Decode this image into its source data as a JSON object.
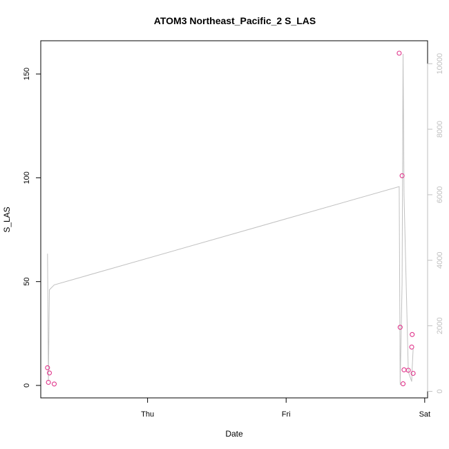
{
  "chart_data": {
    "type": "scatter",
    "title": "ATOM3 Northeast_Pacific_2 S_LAS",
    "xlabel": "Date",
    "ylabel": "S_LAS",
    "x_ticks": [
      {
        "label": "Thu",
        "value": "2021-05-13T00:00"
      },
      {
        "label": "Fri",
        "value": "2021-05-14T00:00"
      },
      {
        "label": "Sat",
        "value": "2021-05-15T00:00"
      }
    ],
    "xlim": [
      "2021-05-12T05:30",
      "2021-05-15T00:30"
    ],
    "ylim": [
      -6,
      166
    ],
    "y_ticks": [
      0,
      50,
      100,
      150
    ],
    "y2lim": [
      -200,
      10700
    ],
    "y2_ticks": [
      0,
      2000,
      4000,
      6000,
      8000,
      10000
    ],
    "grid": false,
    "legend": "none",
    "series": [
      {
        "kind": "points",
        "axis": "left",
        "color": "#e0338a",
        "points": [
          {
            "x": "2021-05-12T06:40",
            "y": 8.5
          },
          {
            "x": "2021-05-12T06:50",
            "y": 1.5
          },
          {
            "x": "2021-05-12T07:00",
            "y": 6
          },
          {
            "x": "2021-05-12T07:50",
            "y": 0.7
          },
          {
            "x": "2021-05-14T19:35",
            "y": 160
          },
          {
            "x": "2021-05-14T19:45",
            "y": 28
          },
          {
            "x": "2021-05-14T20:05",
            "y": 101
          },
          {
            "x": "2021-05-14T20:15",
            "y": 0.8
          },
          {
            "x": "2021-05-14T20:25",
            "y": 7.5
          },
          {
            "x": "2021-05-14T21:10",
            "y": 7.3
          },
          {
            "x": "2021-05-14T21:45",
            "y": 18.5
          },
          {
            "x": "2021-05-14T21:50",
            "y": 24.5
          },
          {
            "x": "2021-05-14T22:00",
            "y": 5.8
          }
        ]
      },
      {
        "kind": "line",
        "axis": "right",
        "color": "#c0c0c0",
        "points": [
          {
            "x": "2021-05-12T06:40",
            "y": 4200
          },
          {
            "x": "2021-05-12T06:50",
            "y": 300
          },
          {
            "x": "2021-05-12T07:00",
            "y": 3100
          },
          {
            "x": "2021-05-12T07:50",
            "y": 3250
          },
          {
            "x": "2021-05-14T19:35",
            "y": 6250
          },
          {
            "x": "2021-05-14T19:45",
            "y": 200
          },
          {
            "x": "2021-05-14T20:05",
            "y": 3300
          },
          {
            "x": "2021-05-14T20:15",
            "y": 10300
          },
          {
            "x": "2021-05-14T20:25",
            "y": 6000
          },
          {
            "x": "2021-05-14T21:10",
            "y": 600
          },
          {
            "x": "2021-05-14T21:45",
            "y": 300
          },
          {
            "x": "2021-05-14T21:50",
            "y": 700
          },
          {
            "x": "2021-05-14T22:00",
            "y": 1300
          }
        ]
      }
    ]
  },
  "colors": {
    "axis": "#000000",
    "right_axis": "#bfbfbf"
  }
}
